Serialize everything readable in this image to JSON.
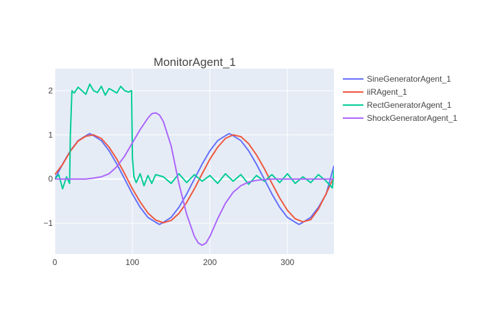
{
  "chart_data": {
    "type": "line",
    "title": "MonitorAgent_1",
    "xlabel": "",
    "ylabel": "",
    "xlim": [
      0,
      360
    ],
    "ylim": [
      -1.7,
      2.5
    ],
    "x_ticks": [
      0,
      100,
      200,
      300
    ],
    "x_tick_labels": [
      "0",
      "100",
      "200",
      "300"
    ],
    "y_ticks": [
      -1,
      0,
      1,
      2
    ],
    "y_tick_labels": [
      "−1",
      "0",
      "1",
      "2"
    ],
    "grid": true,
    "legend": "right",
    "plot_background": "#E5ECF6",
    "series": [
      {
        "name": "SineGeneratorAgent_1",
        "color": "#636EFA",
        "x": [
          0,
          10,
          20,
          30,
          40,
          45,
          50,
          60,
          70,
          80,
          90,
          100,
          110,
          120,
          130,
          135,
          140,
          150,
          160,
          170,
          180,
          190,
          200,
          210,
          220,
          225,
          230,
          240,
          250,
          260,
          270,
          280,
          290,
          300,
          310,
          315,
          320,
          330,
          340,
          350,
          360
        ],
        "y": [
          0.0,
          0.34,
          0.64,
          0.87,
          0.98,
          1.03,
          0.98,
          0.87,
          0.64,
          0.34,
          0.0,
          -0.34,
          -0.64,
          -0.87,
          -0.98,
          -1.03,
          -0.98,
          -0.87,
          -0.64,
          -0.34,
          0.0,
          0.34,
          0.64,
          0.87,
          0.98,
          1.03,
          0.98,
          0.87,
          0.64,
          0.34,
          0.0,
          -0.34,
          -0.64,
          -0.87,
          -0.98,
          -1.03,
          -0.98,
          -0.87,
          -0.64,
          -0.34,
          0.3
        ]
      },
      {
        "name": "iiRAgent_1",
        "color": "#EF553B",
        "x": [
          0,
          10,
          20,
          30,
          40,
          50,
          60,
          70,
          80,
          90,
          100,
          110,
          120,
          130,
          140,
          150,
          160,
          170,
          180,
          190,
          200,
          210,
          220,
          230,
          240,
          250,
          260,
          270,
          280,
          290,
          300,
          310,
          320,
          330,
          340,
          350,
          360
        ],
        "y": [
          0.1,
          0.33,
          0.63,
          0.86,
          0.97,
          1.0,
          0.92,
          0.72,
          0.45,
          0.12,
          -0.22,
          -0.52,
          -0.77,
          -0.93,
          -0.99,
          -0.94,
          -0.78,
          -0.53,
          -0.22,
          0.12,
          0.45,
          0.72,
          0.92,
          1.0,
          0.96,
          0.8,
          0.55,
          0.24,
          -0.1,
          -0.43,
          -0.71,
          -0.9,
          -0.97,
          -0.92,
          -0.68,
          -0.33,
          0.05
        ]
      },
      {
        "name": "RectGeneratorAgent_1",
        "color": "#00CC96",
        "x": [
          0,
          5,
          10,
          15,
          19,
          20,
          22,
          25,
          30,
          35,
          40,
          45,
          50,
          55,
          60,
          65,
          70,
          75,
          80,
          85,
          90,
          95,
          99,
          100,
          102,
          105,
          110,
          115,
          120,
          125,
          130,
          140,
          150,
          160,
          170,
          180,
          190,
          200,
          210,
          220,
          230,
          240,
          250,
          260,
          270,
          280,
          290,
          300,
          310,
          320,
          330,
          340,
          350,
          358,
          360
        ],
        "y": [
          0.0,
          0.1,
          -0.22,
          0.05,
          -0.1,
          1.0,
          2.0,
          1.95,
          2.08,
          2.0,
          1.92,
          2.15,
          2.0,
          1.96,
          2.1,
          1.9,
          2.05,
          2.0,
          1.95,
          2.1,
          2.0,
          1.97,
          2.0,
          0.5,
          0.05,
          -0.08,
          0.12,
          -0.15,
          0.08,
          -0.1,
          0.1,
          0.05,
          -0.1,
          0.12,
          -0.08,
          0.1,
          -0.05,
          0.08,
          -0.1,
          0.12,
          -0.05,
          0.1,
          -0.12,
          0.08,
          -0.05,
          0.1,
          -0.08,
          0.12,
          -0.1,
          0.05,
          -0.08,
          0.1,
          -0.05,
          -0.2,
          0.2
        ]
      },
      {
        "name": "ShockGeneratorAgent_1",
        "color": "#AB63FA",
        "x": [
          0,
          20,
          40,
          50,
          60,
          70,
          80,
          90,
          100,
          110,
          120,
          125,
          130,
          135,
          140,
          150,
          160,
          170,
          180,
          185,
          190,
          195,
          200,
          210,
          220,
          230,
          240,
          250,
          260,
          280,
          300,
          320,
          340,
          360
        ],
        "y": [
          0.0,
          0.0,
          0.0,
          0.02,
          0.05,
          0.12,
          0.28,
          0.52,
          0.82,
          1.12,
          1.38,
          1.48,
          1.5,
          1.45,
          1.3,
          0.75,
          -0.1,
          -0.8,
          -1.3,
          -1.45,
          -1.5,
          -1.45,
          -1.3,
          -0.9,
          -0.55,
          -0.3,
          -0.15,
          -0.07,
          -0.03,
          0.0,
          0.0,
          0.0,
          0.0,
          0.0
        ]
      }
    ]
  }
}
